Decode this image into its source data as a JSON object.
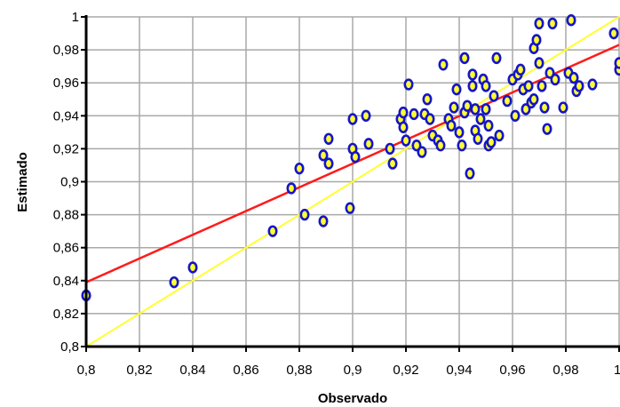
{
  "chart_data": {
    "type": "scatter",
    "title": "",
    "xlabel": "Observado",
    "ylabel": "Estimado",
    "xlim": [
      0.8,
      1.0
    ],
    "ylim": [
      0.8,
      1.0
    ],
    "grid": true,
    "legend": "none",
    "x_ticks": [
      "0,8",
      "0,82",
      "0,84",
      "0,86",
      "0,88",
      "0,9",
      "0,92",
      "0,94",
      "0,96",
      "0,98",
      "1"
    ],
    "y_ticks": [
      "0,8",
      "0,82",
      "0,84",
      "0,86",
      "0,88",
      "0,9",
      "0,92",
      "0,94",
      "0,96",
      "0,98",
      "1"
    ],
    "colors": {
      "points": "#1515c8",
      "regression": "#ff1a1a",
      "identity": "#ffff33",
      "grid": "#a8a8a8"
    },
    "regression_line": {
      "x": [
        0.8,
        1.0
      ],
      "y": [
        0.839,
        0.983
      ]
    },
    "identity_line": {
      "x": [
        0.8,
        1.0
      ],
      "y": [
        0.8,
        1.0
      ]
    },
    "points": [
      [
        0.8,
        0.831
      ],
      [
        0.833,
        0.839
      ],
      [
        0.84,
        0.848
      ],
      [
        0.87,
        0.87
      ],
      [
        0.877,
        0.896
      ],
      [
        0.88,
        0.908
      ],
      [
        0.882,
        0.88
      ],
      [
        0.889,
        0.876
      ],
      [
        0.889,
        0.916
      ],
      [
        0.891,
        0.926
      ],
      [
        0.891,
        0.911
      ],
      [
        0.899,
        0.884
      ],
      [
        0.9,
        0.938
      ],
      [
        0.9,
        0.92
      ],
      [
        0.901,
        0.915
      ],
      [
        0.905,
        0.94
      ],
      [
        0.906,
        0.923
      ],
      [
        0.914,
        0.92
      ],
      [
        0.915,
        0.911
      ],
      [
        0.918,
        0.938
      ],
      [
        0.919,
        0.942
      ],
      [
        0.919,
        0.933
      ],
      [
        0.92,
        0.925
      ],
      [
        0.921,
        0.959
      ],
      [
        0.923,
        0.941
      ],
      [
        0.924,
        0.922
      ],
      [
        0.926,
        0.918
      ],
      [
        0.927,
        0.941
      ],
      [
        0.928,
        0.95
      ],
      [
        0.929,
        0.938
      ],
      [
        0.93,
        0.928
      ],
      [
        0.932,
        0.925
      ],
      [
        0.933,
        0.922
      ],
      [
        0.934,
        0.971
      ],
      [
        0.936,
        0.938
      ],
      [
        0.937,
        0.934
      ],
      [
        0.938,
        0.945
      ],
      [
        0.939,
        0.956
      ],
      [
        0.94,
        0.93
      ],
      [
        0.941,
        0.922
      ],
      [
        0.942,
        0.975
      ],
      [
        0.942,
        0.942
      ],
      [
        0.943,
        0.946
      ],
      [
        0.944,
        0.905
      ],
      [
        0.945,
        0.965
      ],
      [
        0.945,
        0.958
      ],
      [
        0.946,
        0.944
      ],
      [
        0.946,
        0.931
      ],
      [
        0.947,
        0.926
      ],
      [
        0.948,
        0.938
      ],
      [
        0.949,
        0.962
      ],
      [
        0.95,
        0.958
      ],
      [
        0.95,
        0.944
      ],
      [
        0.951,
        0.934
      ],
      [
        0.951,
        0.922
      ],
      [
        0.952,
        0.924
      ],
      [
        0.953,
        0.952
      ],
      [
        0.954,
        0.975
      ],
      [
        0.955,
        0.928
      ],
      [
        0.958,
        0.949
      ],
      [
        0.96,
        0.962
      ],
      [
        0.961,
        0.94
      ],
      [
        0.962,
        0.965
      ],
      [
        0.963,
        0.968
      ],
      [
        0.964,
        0.956
      ],
      [
        0.965,
        0.944
      ],
      [
        0.966,
        0.958
      ],
      [
        0.967,
        0.948
      ],
      [
        0.968,
        0.981
      ],
      [
        0.968,
        0.95
      ],
      [
        0.969,
        0.986
      ],
      [
        0.97,
        0.996
      ],
      [
        0.97,
        0.972
      ],
      [
        0.971,
        0.958
      ],
      [
        0.972,
        0.945
      ],
      [
        0.973,
        0.932
      ],
      [
        0.974,
        0.966
      ],
      [
        0.975,
        0.996
      ],
      [
        0.976,
        0.962
      ],
      [
        0.979,
        0.945
      ],
      [
        0.981,
        0.966
      ],
      [
        0.982,
        0.998
      ],
      [
        0.983,
        0.963
      ],
      [
        0.984,
        0.955
      ],
      [
        0.985,
        0.958
      ],
      [
        0.99,
        0.959
      ],
      [
        0.998,
        0.99
      ],
      [
        1.0,
        0.968
      ],
      [
        1.0,
        0.972
      ]
    ]
  }
}
